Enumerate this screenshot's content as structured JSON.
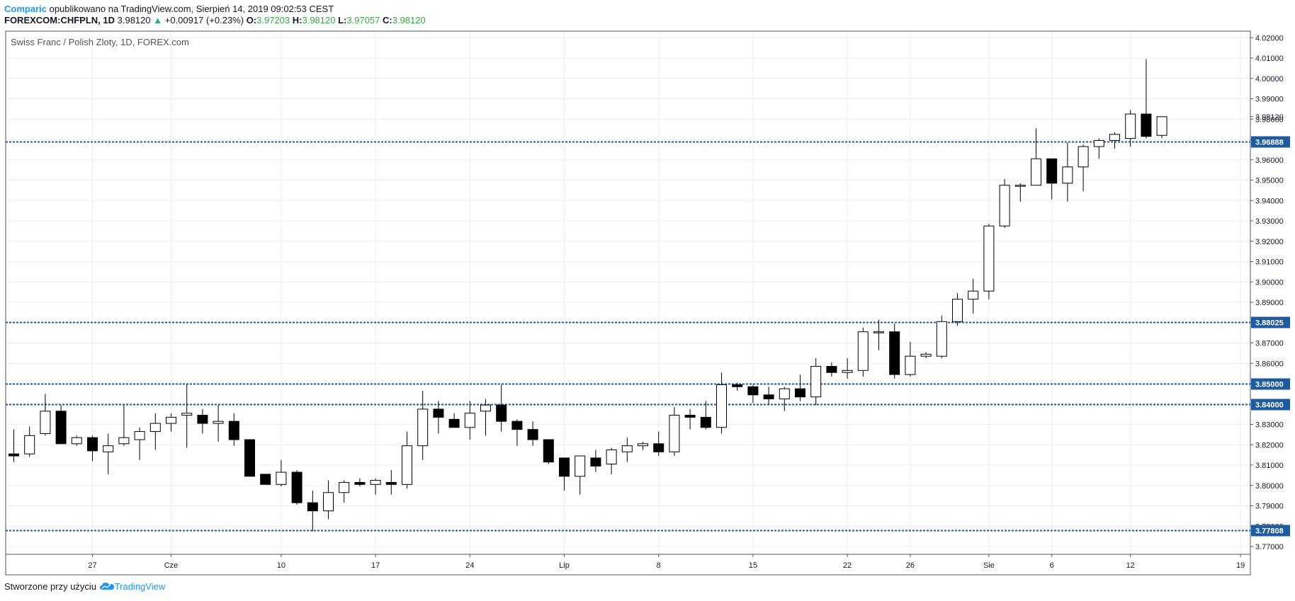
{
  "header": {
    "author": "Comparic",
    "published": "opublikowano na TradingView.com, Sierpień 14, 2019 09:02:53 CEST",
    "symbol": "FOREXCOM:CHFPLN, 1D",
    "last": "3.98120",
    "change": "+0.00917 (+0.23%)",
    "o_label": "O:",
    "o_value": "3.97203",
    "h_label": "H:",
    "h_value": "3.98120",
    "l_label": "L:",
    "l_value": "3.97057",
    "c_label": "C:",
    "c_value": "3.98120",
    "up_arrow": "▲"
  },
  "footer": {
    "created_with": "Stworzone przy użyciu",
    "brand": "TradingView",
    "brand_icon": "tradingview-cloud-icon"
  },
  "colors": {
    "level_line": "#1e5aa0",
    "candle_up_fill": "#ffffff",
    "candle_down_fill": "#000000",
    "grid": "#e9eef3",
    "border": "#555555"
  },
  "chart_data": {
    "type": "candlestick",
    "title": "Swiss Franc / Polish Zloty, 1D, FOREX.com",
    "ylim": [
      3.764,
      4.024
    ],
    "y_ticks": [
      "3.77000",
      "3.78000",
      "3.79000",
      "3.80000",
      "3.81000",
      "3.82000",
      "3.83000",
      "3.84000",
      "3.85000",
      "3.86000",
      "3.87000",
      "3.88000",
      "3.89000",
      "3.90000",
      "3.91000",
      "3.92000",
      "3.93000",
      "3.94000",
      "3.95000",
      "3.96000",
      "3.97000",
      "3.98000",
      "3.99000",
      "4.00000",
      "4.01000",
      "4.02000"
    ],
    "x_labels": [
      {
        "label": "27",
        "bar": 5
      },
      {
        "label": "Cze",
        "bar": 10
      },
      {
        "label": "10",
        "bar": 17
      },
      {
        "label": "17",
        "bar": 23
      },
      {
        "label": "24",
        "bar": 29
      },
      {
        "label": "Lip",
        "bar": 35
      },
      {
        "label": "8",
        "bar": 41
      },
      {
        "label": "15",
        "bar": 47
      },
      {
        "label": "22",
        "bar": 53
      },
      {
        "label": "26",
        "bar": 57
      },
      {
        "label": "Sie",
        "bar": 62
      },
      {
        "label": "6",
        "bar": 66
      },
      {
        "label": "12",
        "bar": 71
      },
      {
        "label": "19",
        "bar": 78
      }
    ],
    "levels": [
      3.96888,
      3.88025,
      3.85,
      3.84,
      3.77808
    ],
    "level_labels": [
      "3.96888",
      "3.88025",
      "3.85000",
      "3.84000",
      "3.77808"
    ],
    "last_price": 3.9812,
    "last_price_label": "3.98120",
    "candles": [
      {
        "o": 3.8155,
        "h": 3.8275,
        "l": 3.8115,
        "c": 3.8145
      },
      {
        "o": 3.8155,
        "h": 3.829,
        "l": 3.814,
        "c": 3.8245
      },
      {
        "o": 3.8255,
        "h": 3.845,
        "l": 3.8245,
        "c": 3.8365
      },
      {
        "o": 3.8365,
        "h": 3.8395,
        "l": 3.8205,
        "c": 3.8205
      },
      {
        "o": 3.8205,
        "h": 3.8245,
        "l": 3.8195,
        "c": 3.8235
      },
      {
        "o": 3.8235,
        "h": 3.8245,
        "l": 3.812,
        "c": 3.817
      },
      {
        "o": 3.8165,
        "h": 3.8255,
        "l": 3.8055,
        "c": 3.8195
      },
      {
        "o": 3.8205,
        "h": 3.8395,
        "l": 3.8195,
        "c": 3.8235
      },
      {
        "o": 3.8225,
        "h": 3.8285,
        "l": 3.8125,
        "c": 3.8265
      },
      {
        "o": 3.8265,
        "h": 3.8355,
        "l": 3.8175,
        "c": 3.8305
      },
      {
        "o": 3.8305,
        "h": 3.8355,
        "l": 3.8265,
        "c": 3.8335
      },
      {
        "o": 3.8345,
        "h": 3.8495,
        "l": 3.8185,
        "c": 3.8355
      },
      {
        "o": 3.8345,
        "h": 3.8375,
        "l": 3.8255,
        "c": 3.8305
      },
      {
        "o": 3.8305,
        "h": 3.8395,
        "l": 3.8215,
        "c": 3.8315
      },
      {
        "o": 3.8315,
        "h": 3.8355,
        "l": 3.8195,
        "c": 3.8225
      },
      {
        "o": 3.8225,
        "h": 3.8225,
        "l": 3.8045,
        "c": 3.8045
      },
      {
        "o": 3.8055,
        "h": 3.8055,
        "l": 3.8005,
        "c": 3.8005
      },
      {
        "o": 3.8005,
        "h": 3.8125,
        "l": 3.7995,
        "c": 3.8065
      },
      {
        "o": 3.8065,
        "h": 3.8075,
        "l": 3.7905,
        "c": 3.7915
      },
      {
        "o": 3.7915,
        "h": 3.7975,
        "l": 3.7775,
        "c": 3.7875
      },
      {
        "o": 3.7875,
        "h": 3.8025,
        "l": 3.7835,
        "c": 3.7965
      },
      {
        "o": 3.7965,
        "h": 3.8025,
        "l": 3.7915,
        "c": 3.8015
      },
      {
        "o": 3.8015,
        "h": 3.8035,
        "l": 3.7995,
        "c": 3.8005
      },
      {
        "o": 3.8005,
        "h": 3.8035,
        "l": 3.7955,
        "c": 3.8025
      },
      {
        "o": 3.8015,
        "h": 3.8075,
        "l": 3.7955,
        "c": 3.8005
      },
      {
        "o": 3.8005,
        "h": 3.8265,
        "l": 3.7985,
        "c": 3.8195
      },
      {
        "o": 3.8195,
        "h": 3.8465,
        "l": 3.8125,
        "c": 3.8375
      },
      {
        "o": 3.8375,
        "h": 3.8415,
        "l": 3.8255,
        "c": 3.8335
      },
      {
        "o": 3.8325,
        "h": 3.8355,
        "l": 3.8285,
        "c": 3.8285
      },
      {
        "o": 3.8285,
        "h": 3.8415,
        "l": 3.8225,
        "c": 3.8355
      },
      {
        "o": 3.8365,
        "h": 3.8425,
        "l": 3.8245,
        "c": 3.8395
      },
      {
        "o": 3.8395,
        "h": 3.8495,
        "l": 3.8265,
        "c": 3.8315
      },
      {
        "o": 3.8315,
        "h": 3.8325,
        "l": 3.8195,
        "c": 3.8275
      },
      {
        "o": 3.8275,
        "h": 3.8315,
        "l": 3.8195,
        "c": 3.8225
      },
      {
        "o": 3.8225,
        "h": 3.8225,
        "l": 3.8105,
        "c": 3.8115
      },
      {
        "o": 3.8135,
        "h": 3.8135,
        "l": 3.7975,
        "c": 3.8045
      },
      {
        "o": 3.8045,
        "h": 3.8145,
        "l": 3.7955,
        "c": 3.8145
      },
      {
        "o": 3.8135,
        "h": 3.8175,
        "l": 3.8065,
        "c": 3.8095
      },
      {
        "o": 3.8105,
        "h": 3.8185,
        "l": 3.8055,
        "c": 3.8175
      },
      {
        "o": 3.8165,
        "h": 3.8235,
        "l": 3.8115,
        "c": 3.8195
      },
      {
        "o": 3.8195,
        "h": 3.8215,
        "l": 3.8175,
        "c": 3.8205
      },
      {
        "o": 3.8205,
        "h": 3.8265,
        "l": 3.8145,
        "c": 3.8165
      },
      {
        "o": 3.8165,
        "h": 3.8385,
        "l": 3.8145,
        "c": 3.8345
      },
      {
        "o": 3.8345,
        "h": 3.8375,
        "l": 3.8275,
        "c": 3.8335
      },
      {
        "o": 3.8335,
        "h": 3.8415,
        "l": 3.8275,
        "c": 3.8285
      },
      {
        "o": 3.8285,
        "h": 3.8555,
        "l": 3.8255,
        "c": 3.8495
      },
      {
        "o": 3.8495,
        "h": 3.8505,
        "l": 3.8465,
        "c": 3.8485
      },
      {
        "o": 3.8485,
        "h": 3.8495,
        "l": 3.8405,
        "c": 3.8445
      },
      {
        "o": 3.8445,
        "h": 3.8485,
        "l": 3.8395,
        "c": 3.8425
      },
      {
        "o": 3.8425,
        "h": 3.8485,
        "l": 3.8365,
        "c": 3.8475
      },
      {
        "o": 3.8475,
        "h": 3.8545,
        "l": 3.8415,
        "c": 3.8435
      },
      {
        "o": 3.8435,
        "h": 3.8625,
        "l": 3.8395,
        "c": 3.8585
      },
      {
        "o": 3.8585,
        "h": 3.8605,
        "l": 3.8535,
        "c": 3.8555
      },
      {
        "o": 3.8555,
        "h": 3.8625,
        "l": 3.8525,
        "c": 3.8565
      },
      {
        "o": 3.8565,
        "h": 3.8775,
        "l": 3.8535,
        "c": 3.8755
      },
      {
        "o": 3.8755,
        "h": 3.8815,
        "l": 3.8665,
        "c": 3.8755
      },
      {
        "o": 3.8755,
        "h": 3.8795,
        "l": 3.8525,
        "c": 3.8545
      },
      {
        "o": 3.8545,
        "h": 3.8705,
        "l": 3.8535,
        "c": 3.8635
      },
      {
        "o": 3.8635,
        "h": 3.8655,
        "l": 3.8625,
        "c": 3.8645
      },
      {
        "o": 3.8635,
        "h": 3.8835,
        "l": 3.8625,
        "c": 3.8805
      },
      {
        "o": 3.8805,
        "h": 3.8945,
        "l": 3.8785,
        "c": 3.8915
      },
      {
        "o": 3.8915,
        "h": 3.9015,
        "l": 3.8845,
        "c": 3.8955
      },
      {
        "o": 3.8955,
        "h": 3.9285,
        "l": 3.8915,
        "c": 3.9275
      },
      {
        "o": 3.9275,
        "h": 3.9505,
        "l": 3.9265,
        "c": 3.9475
      },
      {
        "o": 3.9475,
        "h": 3.9485,
        "l": 3.9395,
        "c": 3.9475
      },
      {
        "o": 3.9475,
        "h": 3.9755,
        "l": 3.9475,
        "c": 3.9605
      },
      {
        "o": 3.9605,
        "h": 3.9605,
        "l": 3.9405,
        "c": 3.9485
      },
      {
        "o": 3.9485,
        "h": 3.9685,
        "l": 3.9395,
        "c": 3.9565
      },
      {
        "o": 3.9565,
        "h": 3.9675,
        "l": 3.9445,
        "c": 3.9665
      },
      {
        "o": 3.9665,
        "h": 3.9705,
        "l": 3.9605,
        "c": 3.9695
      },
      {
        "o": 3.9695,
        "h": 3.9735,
        "l": 3.9655,
        "c": 3.9725
      },
      {
        "o": 3.9705,
        "h": 3.9845,
        "l": 3.9665,
        "c": 3.9825
      },
      {
        "o": 3.9825,
        "h": 4.0095,
        "l": 3.9705,
        "c": 3.9715
      },
      {
        "o": 3.972,
        "h": 3.9812,
        "l": 3.9706,
        "c": 3.9812
      }
    ]
  }
}
